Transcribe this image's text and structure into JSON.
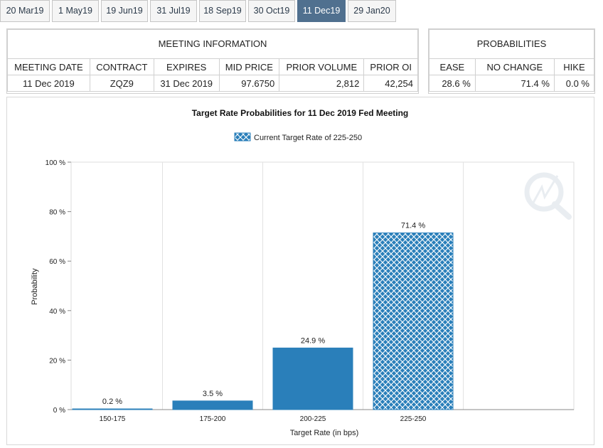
{
  "tabs": [
    "20 Mar19",
    "1 May19",
    "19 Jun19",
    "31 Jul19",
    "18 Sep19",
    "30 Oct19",
    "11 Dec19",
    "29 Jan20"
  ],
  "active_tab": "11 Dec19",
  "meeting_info": {
    "title": "MEETING INFORMATION",
    "headers": [
      "MEETING DATE",
      "CONTRACT",
      "EXPIRES",
      "MID PRICE",
      "PRIOR VOLUME",
      "PRIOR OI"
    ],
    "values": [
      "11 Dec 2019",
      "ZQZ9",
      "31 Dec 2019",
      "97.6750",
      "2,812",
      "42,254"
    ]
  },
  "probabilities": {
    "title": "PROBABILITIES",
    "headers": [
      "EASE",
      "NO CHANGE",
      "HIKE"
    ],
    "values": [
      "28.6 %",
      "71.4 %",
      "0.0 %"
    ]
  },
  "colors": {
    "bar": "#2a7fba",
    "tab_active": "#50708f"
  },
  "chart_data": {
    "type": "bar",
    "title": "Target Rate Probabilities for 11 Dec 2019 Fed Meeting",
    "legend": "Current Target Rate of 225-250",
    "xlabel": "Target Rate (in bps)",
    "ylabel": "Probability",
    "categories": [
      "150-175",
      "175-200",
      "200-225",
      "225-250"
    ],
    "values": [
      0.2,
      3.5,
      24.9,
      71.4
    ],
    "data_labels": [
      "0.2 %",
      "3.5 %",
      "24.9 %",
      "71.4 %"
    ],
    "highlighted_category": "225-250",
    "ylim": [
      0,
      100
    ],
    "yticks": [
      "0 %",
      "20 %",
      "40 %",
      "60 %",
      "80 %",
      "100 %"
    ],
    "ytick_values": [
      0,
      20,
      40,
      60,
      80,
      100
    ],
    "grid": true
  }
}
